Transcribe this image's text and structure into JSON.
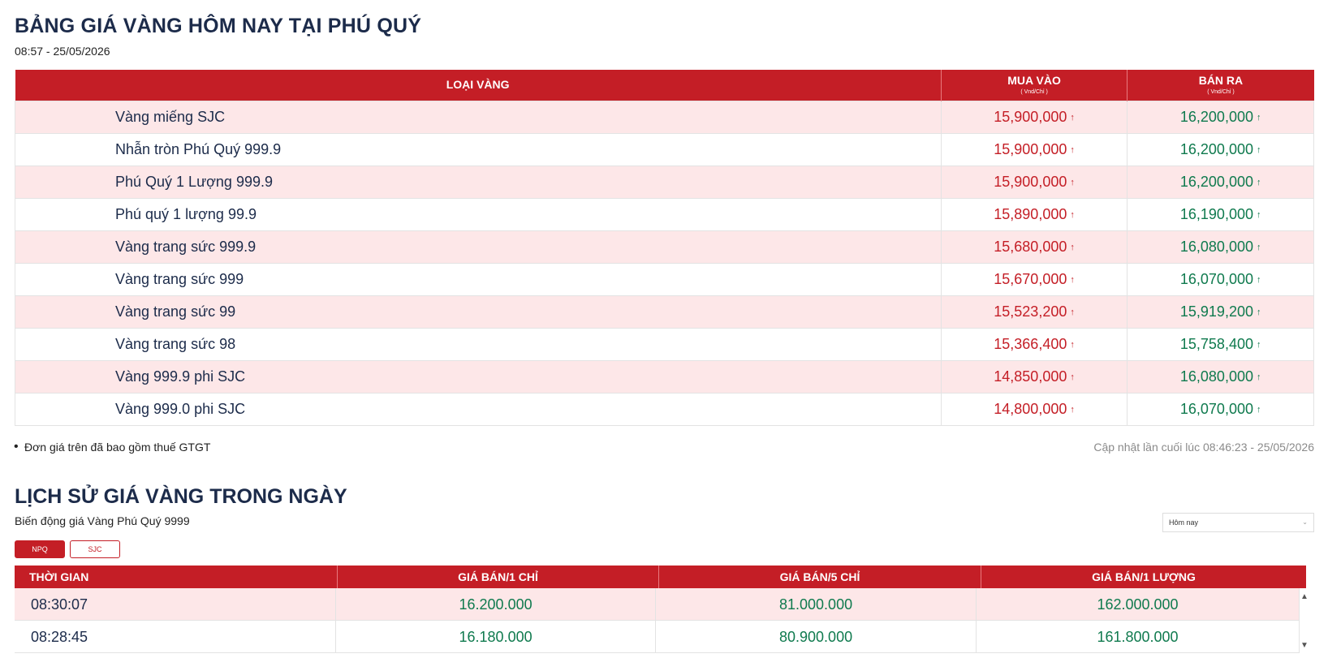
{
  "header": {
    "title": "BẢNG GIÁ VÀNG HÔM NAY TẠI PHÚ QUÝ",
    "timestamp": "08:57 - 25/05/2026"
  },
  "price_table": {
    "columns": {
      "type": "LOẠI VÀNG",
      "buy": "MUA VÀO",
      "buy_unit": "( Vnd/Chỉ )",
      "sell": "BÁN RA",
      "sell_unit": "( Vnd/Chỉ )"
    },
    "arrow_icon": "↑",
    "rows": [
      {
        "name": "Vàng miếng SJC",
        "buy": "15,900,000",
        "sell": "16,200,000"
      },
      {
        "name": "Nhẫn tròn Phú Quý 999.9",
        "buy": "15,900,000",
        "sell": "16,200,000"
      },
      {
        "name": "Phú Quý 1 Lượng 999.9",
        "buy": "15,900,000",
        "sell": "16,200,000"
      },
      {
        "name": "Phú quý 1 lượng 99.9",
        "buy": "15,890,000",
        "sell": "16,190,000"
      },
      {
        "name": "Vàng trang sức 999.9",
        "buy": "15,680,000",
        "sell": "16,080,000"
      },
      {
        "name": "Vàng trang sức 999",
        "buy": "15,670,000",
        "sell": "16,070,000"
      },
      {
        "name": "Vàng trang sức 99",
        "buy": "15,523,200",
        "sell": "15,919,200"
      },
      {
        "name": "Vàng trang sức 98",
        "buy": "15,366,400",
        "sell": "15,758,400"
      },
      {
        "name": "Vàng 999.9 phi SJC",
        "buy": "14,850,000",
        "sell": "16,080,000"
      },
      {
        "name": "Vàng 999.0 phi SJC",
        "buy": "14,800,000",
        "sell": "16,070,000"
      }
    ],
    "note": "Đơn giá trên đã bao gồm thuế GTGT",
    "last_updated": "Cập nhật lần cuối lúc 08:46:23 - 25/05/2026"
  },
  "history": {
    "title": "LỊCH SỬ GIÁ VÀNG TRONG NGÀY",
    "subtitle": "Biến động giá Vàng Phú Quý 9999",
    "range_select": "Hôm nay",
    "tabs": [
      "NPQ",
      "SJC"
    ],
    "columns": [
      "THỜI GIAN",
      "GIÁ BÁN/1 CHỈ",
      "GIÁ BÁN/5 CHỈ",
      "GIÁ BÁN/1 LƯỢNG"
    ],
    "rows": [
      {
        "time": "08:30:07",
        "p1": "16.200.000",
        "p5": "81.000.000",
        "p10": "162.000.000"
      },
      {
        "time": "08:28:45",
        "p1": "16.180.000",
        "p5": "80.900.000",
        "p10": "161.800.000"
      }
    ]
  },
  "colors": {
    "brand_red": "#c41e26",
    "price_green": "#0f7a4e",
    "row_alt_pink": "#fde7e8",
    "heading_navy": "#1c2b4a"
  }
}
